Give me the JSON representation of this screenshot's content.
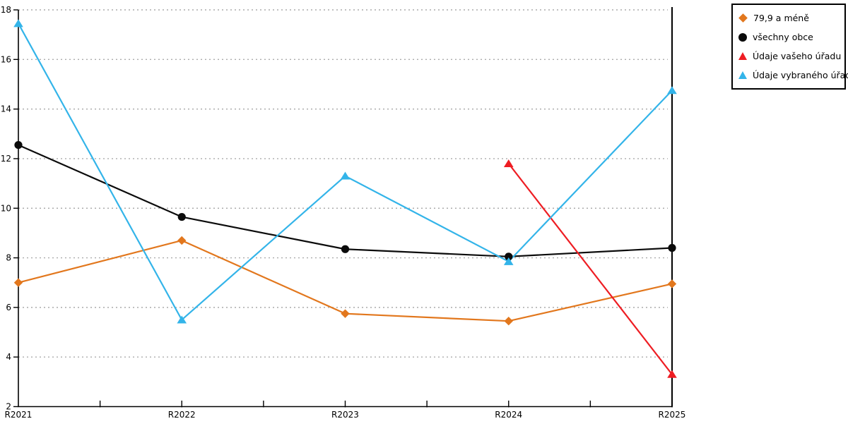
{
  "chart_data": {
    "type": "line",
    "title": "",
    "xlabel": "",
    "ylabel": "",
    "categories": [
      "R2021",
      "R2022",
      "R2023",
      "R2024",
      "R2025"
    ],
    "series": [
      {
        "name": "79,9 a méně",
        "marker": "diamond",
        "color": "#e2771d",
        "values": [
          7.0,
          8.7,
          5.75,
          5.45,
          6.95
        ]
      },
      {
        "name": "všechny obce",
        "marker": "circle",
        "color": "#0b0b0b",
        "values": [
          12.55,
          9.65,
          8.35,
          8.05,
          8.4
        ]
      },
      {
        "name": "Údaje vašeho úřadu",
        "marker": "triangle",
        "color": "#ee1d23",
        "values": [
          null,
          null,
          null,
          11.8,
          3.3
        ]
      },
      {
        "name": "Údaje vybraného úřadu",
        "marker": "triangle",
        "color": "#33b4e9",
        "values": [
          17.45,
          5.5,
          11.3,
          7.85,
          14.75
        ]
      }
    ],
    "ylim": [
      2,
      18
    ],
    "yticks": [
      2,
      4,
      6,
      8,
      10,
      12,
      14,
      16,
      18
    ],
    "grid": "horizontal-dotted",
    "grid_color": "#ababab",
    "axis_color": "#000000",
    "legend_position": "top-right"
  }
}
